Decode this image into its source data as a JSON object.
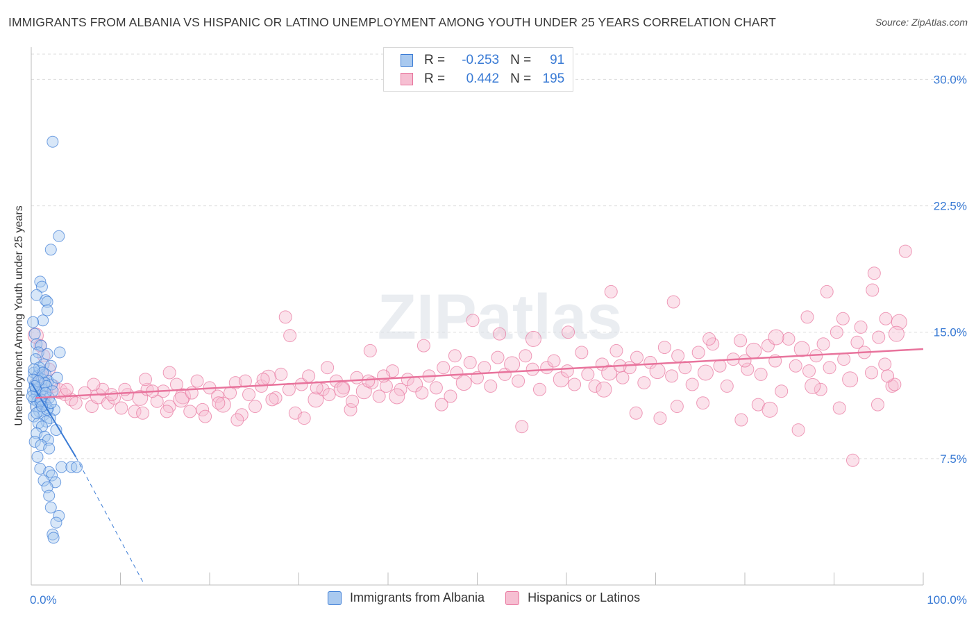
{
  "title": "IMMIGRANTS FROM ALBANIA VS HISPANIC OR LATINO UNEMPLOYMENT AMONG YOUTH UNDER 25 YEARS CORRELATION CHART",
  "source": "Source: ZipAtlas.com",
  "watermark": "ZIPatlas",
  "colors": {
    "albania": "#3a7bd5",
    "albania_fill": "#a9c9ef",
    "hispanic": "#e8739c",
    "hispanic_fill": "#f6bfd2",
    "grid": "#dcdcdc",
    "tick_label": "#3a7bd5"
  },
  "legend": {
    "r_label": "R =",
    "n_label": "N =",
    "rows": [
      {
        "series": "albania",
        "r": "-0.253",
        "n": "91"
      },
      {
        "series": "hispanic",
        "r": "0.442",
        "n": "195"
      }
    ]
  },
  "bottom_legend": [
    {
      "series": "albania",
      "label": "Immigrants from Albania"
    },
    {
      "series": "hispanic",
      "label": "Hispanics or Latinos"
    }
  ],
  "chart_data": {
    "type": "scatter",
    "title": "IMMIGRANTS FROM ALBANIA VS HISPANIC OR LATINO UNEMPLOYMENT AMONG YOUTH UNDER 25 YEARS CORRELATION CHART",
    "xlabel": "",
    "ylabel": "Unemployment Among Youth under 25 years",
    "xlim": [
      0,
      100
    ],
    "ylim": [
      0,
      31.5
    ],
    "x_tick_labels": [
      "0.0%",
      "100.0%"
    ],
    "y_ticks": [
      7.5,
      15.0,
      22.5,
      30.0
    ],
    "y_tick_labels": [
      "7.5%",
      "15.0%",
      "22.5%",
      "30.0%"
    ],
    "grid": true,
    "series": [
      {
        "name": "Immigrants from Albania",
        "key": "albania",
        "r": -0.253,
        "n": 91,
        "trend_solid": [
          [
            0.0,
            12.0
          ],
          [
            5.0,
            7.6
          ]
        ],
        "trend_dashed": [
          [
            5.0,
            7.6
          ],
          [
            12.5,
            0.2
          ]
        ],
        "points": [
          [
            2.4,
            26.3
          ],
          [
            3.1,
            20.7
          ],
          [
            2.2,
            19.9
          ],
          [
            1.0,
            18.0
          ],
          [
            1.2,
            17.7
          ],
          [
            1.6,
            16.9
          ],
          [
            1.8,
            16.8
          ],
          [
            0.6,
            17.2
          ],
          [
            1.8,
            16.3
          ],
          [
            1.3,
            15.7
          ],
          [
            0.2,
            15.6
          ],
          [
            0.4,
            14.9
          ],
          [
            0.6,
            14.3
          ],
          [
            1.1,
            14.2
          ],
          [
            0.8,
            13.8
          ],
          [
            1.8,
            13.7
          ],
          [
            3.2,
            13.8
          ],
          [
            0.5,
            13.4
          ],
          [
            1.4,
            13.1
          ],
          [
            2.2,
            13.0
          ],
          [
            0.9,
            12.7
          ],
          [
            1.6,
            12.5
          ],
          [
            0.3,
            12.6
          ],
          [
            0.7,
            12.4
          ],
          [
            1.2,
            12.2
          ],
          [
            1.9,
            12.1
          ],
          [
            2.3,
            11.9
          ],
          [
            0.4,
            11.9
          ],
          [
            0.8,
            11.7
          ],
          [
            1.3,
            11.6
          ],
          [
            0.2,
            11.5
          ],
          [
            0.6,
            11.3
          ],
          [
            1.0,
            11.4
          ],
          [
            1.5,
            11.2
          ],
          [
            2.0,
            11.1
          ],
          [
            0.3,
            11.0
          ],
          [
            0.7,
            10.9
          ],
          [
            1.1,
            10.8
          ],
          [
            1.6,
            10.7
          ],
          [
            0.5,
            10.6
          ],
          [
            1.9,
            10.5
          ],
          [
            2.6,
            10.4
          ],
          [
            0.9,
            10.3
          ],
          [
            1.4,
            10.1
          ],
          [
            0.3,
            10.0
          ],
          [
            2.1,
            9.9
          ],
          [
            1.7,
            9.7
          ],
          [
            0.8,
            9.6
          ],
          [
            1.2,
            9.4
          ],
          [
            2.8,
            9.2
          ],
          [
            0.6,
            9.0
          ],
          [
            1.5,
            8.8
          ],
          [
            1.9,
            8.6
          ],
          [
            0.4,
            8.5
          ],
          [
            1.1,
            8.3
          ],
          [
            2.0,
            8.1
          ],
          [
            0.7,
            7.6
          ],
          [
            3.4,
            7.0
          ],
          [
            4.5,
            7.0
          ],
          [
            5.1,
            7.0
          ],
          [
            1.0,
            6.9
          ],
          [
            2.0,
            6.7
          ],
          [
            2.3,
            6.5
          ],
          [
            1.4,
            6.2
          ],
          [
            2.7,
            6.1
          ],
          [
            1.8,
            5.8
          ],
          [
            2.0,
            5.3
          ],
          [
            2.2,
            4.6
          ],
          [
            3.1,
            4.1
          ],
          [
            2.8,
            3.7
          ],
          [
            2.4,
            3.0
          ],
          [
            2.5,
            2.8
          ],
          [
            0.9,
            12.9
          ],
          [
            1.5,
            12.0
          ],
          [
            0.2,
            12.2
          ],
          [
            1.7,
            11.8
          ],
          [
            0.5,
            11.6
          ],
          [
            2.4,
            11.5
          ],
          [
            1.0,
            10.9
          ],
          [
            0.1,
            11.2
          ],
          [
            1.3,
            12.6
          ],
          [
            2.9,
            12.3
          ],
          [
            0.6,
            10.2
          ],
          [
            1.8,
            10.4
          ],
          [
            0.3,
            12.8
          ],
          [
            1.1,
            11.0
          ],
          [
            2.2,
            10.8
          ],
          [
            0.8,
            12.1
          ],
          [
            1.6,
            11.4
          ],
          [
            0.4,
            11.8
          ],
          [
            1.2,
            10.6
          ]
        ]
      },
      {
        "name": "Hispanics or Latinos",
        "key": "hispanic",
        "r": 0.442,
        "n": 195,
        "trend": [
          [
            0.5,
            11.1
          ],
          [
            100.0,
            14.0
          ]
        ],
        "points": [
          [
            0.5,
            14.8
          ],
          [
            1.0,
            14.2
          ],
          [
            1.4,
            13.6
          ],
          [
            2.0,
            12.8
          ],
          [
            1.2,
            12.4
          ],
          [
            0.8,
            12.0
          ],
          [
            2.5,
            11.8
          ],
          [
            3.2,
            11.5
          ],
          [
            1.6,
            11.2
          ],
          [
            3.8,
            11.3
          ],
          [
            4.5,
            11.0
          ],
          [
            5.0,
            10.8
          ],
          [
            6.0,
            11.4
          ],
          [
            6.8,
            10.6
          ],
          [
            7.5,
            11.2
          ],
          [
            8.0,
            11.6
          ],
          [
            8.6,
            10.8
          ],
          [
            9.3,
            11.1
          ],
          [
            10.1,
            10.5
          ],
          [
            10.8,
            11.3
          ],
          [
            11.6,
            10.3
          ],
          [
            12.2,
            11.1
          ],
          [
            13.0,
            11.6
          ],
          [
            12.8,
            12.2
          ],
          [
            14.1,
            10.9
          ],
          [
            14.8,
            11.5
          ],
          [
            15.5,
            10.6
          ],
          [
            16.3,
            11.9
          ],
          [
            17.0,
            11.2
          ],
          [
            15.5,
            12.6
          ],
          [
            17.8,
            10.3
          ],
          [
            18.6,
            12.1
          ],
          [
            19.2,
            10.4
          ],
          [
            20.0,
            11.7
          ],
          [
            20.9,
            11.2
          ],
          [
            21.5,
            10.7
          ],
          [
            22.3,
            11.4
          ],
          [
            22.9,
            12.0
          ],
          [
            23.6,
            10.1
          ],
          [
            24.4,
            11.3
          ],
          [
            25.1,
            10.6
          ],
          [
            25.8,
            11.8
          ],
          [
            26.6,
            12.3
          ],
          [
            27.4,
            11.1
          ],
          [
            28.0,
            12.5
          ],
          [
            28.9,
            11.6
          ],
          [
            29.6,
            10.2
          ],
          [
            30.3,
            11.9
          ],
          [
            31.1,
            12.4
          ],
          [
            31.9,
            11.0
          ],
          [
            32.7,
            11.6
          ],
          [
            33.4,
            11.3
          ],
          [
            34.2,
            12.1
          ],
          [
            35.0,
            11.7
          ],
          [
            35.8,
            10.4
          ],
          [
            36.5,
            12.3
          ],
          [
            37.3,
            11.5
          ],
          [
            38.2,
            12.0
          ],
          [
            39.0,
            11.2
          ],
          [
            39.8,
            11.8
          ],
          [
            40.5,
            12.7
          ],
          [
            41.4,
            11.6
          ],
          [
            42.2,
            12.2
          ],
          [
            43.0,
            11.9
          ],
          [
            43.8,
            11.4
          ],
          [
            44.6,
            12.4
          ],
          [
            45.4,
            11.7
          ],
          [
            46.2,
            12.9
          ],
          [
            47.0,
            11.2
          ],
          [
            47.7,
            12.6
          ],
          [
            48.5,
            12.0
          ],
          [
            49.2,
            13.2
          ],
          [
            50.0,
            12.3
          ],
          [
            50.8,
            12.9
          ],
          [
            51.5,
            11.8
          ],
          [
            52.3,
            13.5
          ],
          [
            53.1,
            12.5
          ],
          [
            53.9,
            13.1
          ],
          [
            54.6,
            12.1
          ],
          [
            55.4,
            13.6
          ],
          [
            56.2,
            12.8
          ],
          [
            57.0,
            11.6
          ],
          [
            57.8,
            12.9
          ],
          [
            58.6,
            13.3
          ],
          [
            59.4,
            12.2
          ],
          [
            60.1,
            12.7
          ],
          [
            60.9,
            11.9
          ],
          [
            61.7,
            13.8
          ],
          [
            62.4,
            12.5
          ],
          [
            63.2,
            11.8
          ],
          [
            64.0,
            13.1
          ],
          [
            64.8,
            12.6
          ],
          [
            65.6,
            13.9
          ],
          [
            66.3,
            12.3
          ],
          [
            67.1,
            12.9
          ],
          [
            67.9,
            13.5
          ],
          [
            68.7,
            12.0
          ],
          [
            69.4,
            13.2
          ],
          [
            70.2,
            12.7
          ],
          [
            71.0,
            14.1
          ],
          [
            71.8,
            12.4
          ],
          [
            72.5,
            13.6
          ],
          [
            73.3,
            12.9
          ],
          [
            74.1,
            11.9
          ],
          [
            74.8,
            13.8
          ],
          [
            75.6,
            12.6
          ],
          [
            76.4,
            14.3
          ],
          [
            77.2,
            13.0
          ],
          [
            78.0,
            11.8
          ],
          [
            78.7,
            13.4
          ],
          [
            79.5,
            14.5
          ],
          [
            80.3,
            12.8
          ],
          [
            81.0,
            13.9
          ],
          [
            81.8,
            12.5
          ],
          [
            82.6,
            14.2
          ],
          [
            83.4,
            13.3
          ],
          [
            84.1,
            11.5
          ],
          [
            84.9,
            14.6
          ],
          [
            85.7,
            13.0
          ],
          [
            86.4,
            14.0
          ],
          [
            87.2,
            12.7
          ],
          [
            88.0,
            13.6
          ],
          [
            88.8,
            14.3
          ],
          [
            89.5,
            12.9
          ],
          [
            90.3,
            15.0
          ],
          [
            91.1,
            13.4
          ],
          [
            91.8,
            12.2
          ],
          [
            92.6,
            14.4
          ],
          [
            93.4,
            13.8
          ],
          [
            94.2,
            12.6
          ],
          [
            95.0,
            14.7
          ],
          [
            95.7,
            13.1
          ],
          [
            96.5,
            11.8
          ],
          [
            97.3,
            15.6
          ],
          [
            98.0,
            19.8
          ],
          [
            96.8,
            11.9
          ],
          [
            28.5,
            15.9
          ],
          [
            29.0,
            14.8
          ],
          [
            49.5,
            15.7
          ],
          [
            52.5,
            14.9
          ],
          [
            56.3,
            14.6
          ],
          [
            60.2,
            15.0
          ],
          [
            65.0,
            17.4
          ],
          [
            66.0,
            13.0
          ],
          [
            72.0,
            16.8
          ],
          [
            76.0,
            14.6
          ],
          [
            80.0,
            13.3
          ],
          [
            83.5,
            14.7
          ],
          [
            87.0,
            15.9
          ],
          [
            89.2,
            17.4
          ],
          [
            91.0,
            15.8
          ],
          [
            93.0,
            15.3
          ],
          [
            94.5,
            18.5
          ],
          [
            94.3,
            17.5
          ],
          [
            97.0,
            14.9
          ],
          [
            95.8,
            15.8
          ],
          [
            33.2,
            12.9
          ],
          [
            38.0,
            13.9
          ],
          [
            44.0,
            14.2
          ],
          [
            47.5,
            13.6
          ],
          [
            55.0,
            9.4
          ],
          [
            64.2,
            11.6
          ],
          [
            67.8,
            10.2
          ],
          [
            70.5,
            9.9
          ],
          [
            72.4,
            10.6
          ],
          [
            75.3,
            10.8
          ],
          [
            79.6,
            9.8
          ],
          [
            81.5,
            10.7
          ],
          [
            82.8,
            10.4
          ],
          [
            86.0,
            9.2
          ],
          [
            88.5,
            11.6
          ],
          [
            90.6,
            10.5
          ],
          [
            92.1,
            7.4
          ],
          [
            94.9,
            10.7
          ],
          [
            96.0,
            12.4
          ],
          [
            87.6,
            11.8
          ],
          [
            23.1,
            9.8
          ],
          [
            19.5,
            10.0
          ],
          [
            12.5,
            10.2
          ],
          [
            15.2,
            10.3
          ],
          [
            30.6,
            9.9
          ],
          [
            36.0,
            10.9
          ],
          [
            41.0,
            11.2
          ],
          [
            46.0,
            10.7
          ],
          [
            4.0,
            11.6
          ],
          [
            7.0,
            11.9
          ],
          [
            9.0,
            11.3
          ],
          [
            10.5,
            11.6
          ],
          [
            13.6,
            11.5
          ],
          [
            16.8,
            11.0
          ],
          [
            18.0,
            11.4
          ],
          [
            21.0,
            10.8
          ],
          [
            24.0,
            12.1
          ],
          [
            26.0,
            12.2
          ],
          [
            27.0,
            11.0
          ],
          [
            32.0,
            11.7
          ],
          [
            34.8,
            11.6
          ],
          [
            37.8,
            12.1
          ],
          [
            39.5,
            12.4
          ]
        ]
      }
    ]
  }
}
